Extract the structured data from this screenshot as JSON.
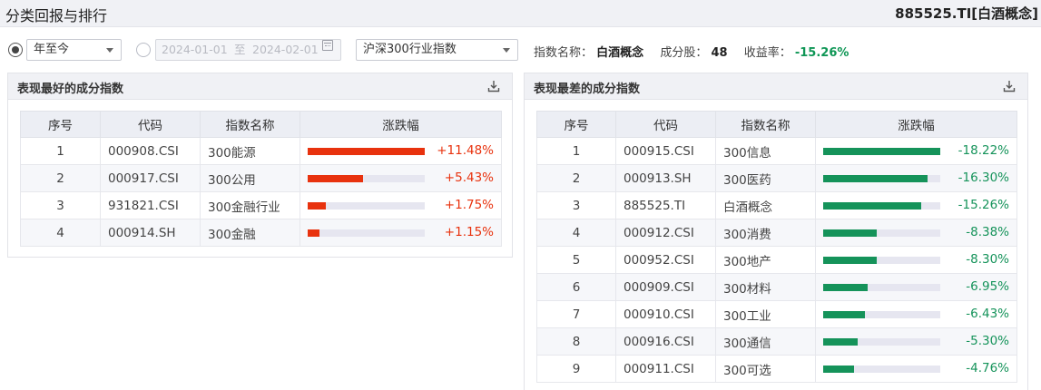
{
  "header": {
    "title": "分类回报与排行",
    "code": "885525.TI[白酒概念]"
  },
  "filters": {
    "period_select": "年至今",
    "date_start": "2024-01-01",
    "date_to": "至",
    "date_end": "2024-02-01",
    "index_select": "沪深300行业指数"
  },
  "summary": {
    "name_label": "指数名称：",
    "name_value": "白酒概念",
    "components_label": "成分股：",
    "components_value": "48",
    "return_label": "收益率：",
    "return_value": "-15.26%"
  },
  "best": {
    "title": "表现最好的成分指数",
    "columns": [
      "序号",
      "代码",
      "指数名称",
      "涨跌幅"
    ],
    "rows": [
      {
        "rank": "1",
        "code": "000908.CSI",
        "name": "300能源",
        "change": "+11.48%",
        "value": 11.48
      },
      {
        "rank": "2",
        "code": "000917.CSI",
        "name": "300公用",
        "change": "+5.43%",
        "value": 5.43
      },
      {
        "rank": "3",
        "code": "931821.CSI",
        "name": "300金融行业",
        "change": "+1.75%",
        "value": 1.75
      },
      {
        "rank": "4",
        "code": "000914.SH",
        "name": "300金融",
        "change": "+1.15%",
        "value": 1.15
      }
    ]
  },
  "worst": {
    "title": "表现最差的成分指数",
    "columns": [
      "序号",
      "代码",
      "指数名称",
      "涨跌幅"
    ],
    "rows": [
      {
        "rank": "1",
        "code": "000915.CSI",
        "name": "300信息",
        "change": "-18.22%",
        "value": -18.22
      },
      {
        "rank": "2",
        "code": "000913.SH",
        "name": "300医药",
        "change": "-16.30%",
        "value": -16.3
      },
      {
        "rank": "3",
        "code": "885525.TI",
        "name": "白酒概念",
        "change": "-15.26%",
        "value": -15.26
      },
      {
        "rank": "4",
        "code": "000912.CSI",
        "name": "300消费",
        "change": "-8.38%",
        "value": -8.38
      },
      {
        "rank": "5",
        "code": "000952.CSI",
        "name": "300地产",
        "change": "-8.30%",
        "value": -8.3
      },
      {
        "rank": "6",
        "code": "000909.CSI",
        "name": "300材料",
        "change": "-6.95%",
        "value": -6.95
      },
      {
        "rank": "7",
        "code": "000910.CSI",
        "name": "300工业",
        "change": "-6.43%",
        "value": -6.43
      },
      {
        "rank": "8",
        "code": "000916.CSI",
        "name": "300通信",
        "change": "-5.30%",
        "value": -5.3
      },
      {
        "rank": "9",
        "code": "000911.CSI",
        "name": "300可选",
        "change": "-4.76%",
        "value": -4.76
      }
    ]
  },
  "colors": {
    "up": "#e8320e",
    "down": "#15935a",
    "track": "#e6e6f0"
  },
  "icons": {
    "download": "download-icon",
    "calendar": "calendar-icon",
    "dropdown": "chevron-down-icon"
  }
}
